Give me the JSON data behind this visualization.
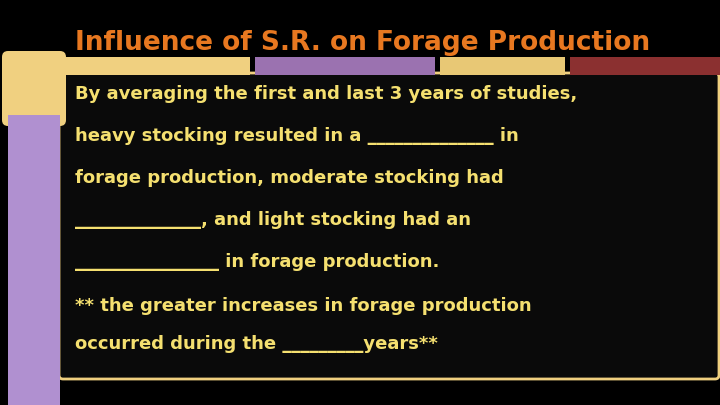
{
  "title": "Influence of S.R. on Forage Production",
  "title_color": "#E87820",
  "background_color": "#000000",
  "title_fontsize": 19,
  "body_fontsize": 13,
  "body_color": "#F5E070",
  "body_text_lines": [
    "By averaging the first and last 3 years of studies,",
    "heavy stocking resulted in a ______________ in",
    "forage production, moderate stocking had",
    "______________, and light stocking had an",
    "________________ in forage production."
  ],
  "footer_text_lines": [
    "** the greater increases in forage production",
    "occurred during the _________years**"
  ],
  "bar_colors": [
    "#F0D080",
    "#9B72B0",
    "#E8C875",
    "#8B3030"
  ],
  "left_bar_color_top": "#F0D080",
  "left_bar_color_bottom": "#B090D0",
  "content_bg": "#0a0a0a"
}
